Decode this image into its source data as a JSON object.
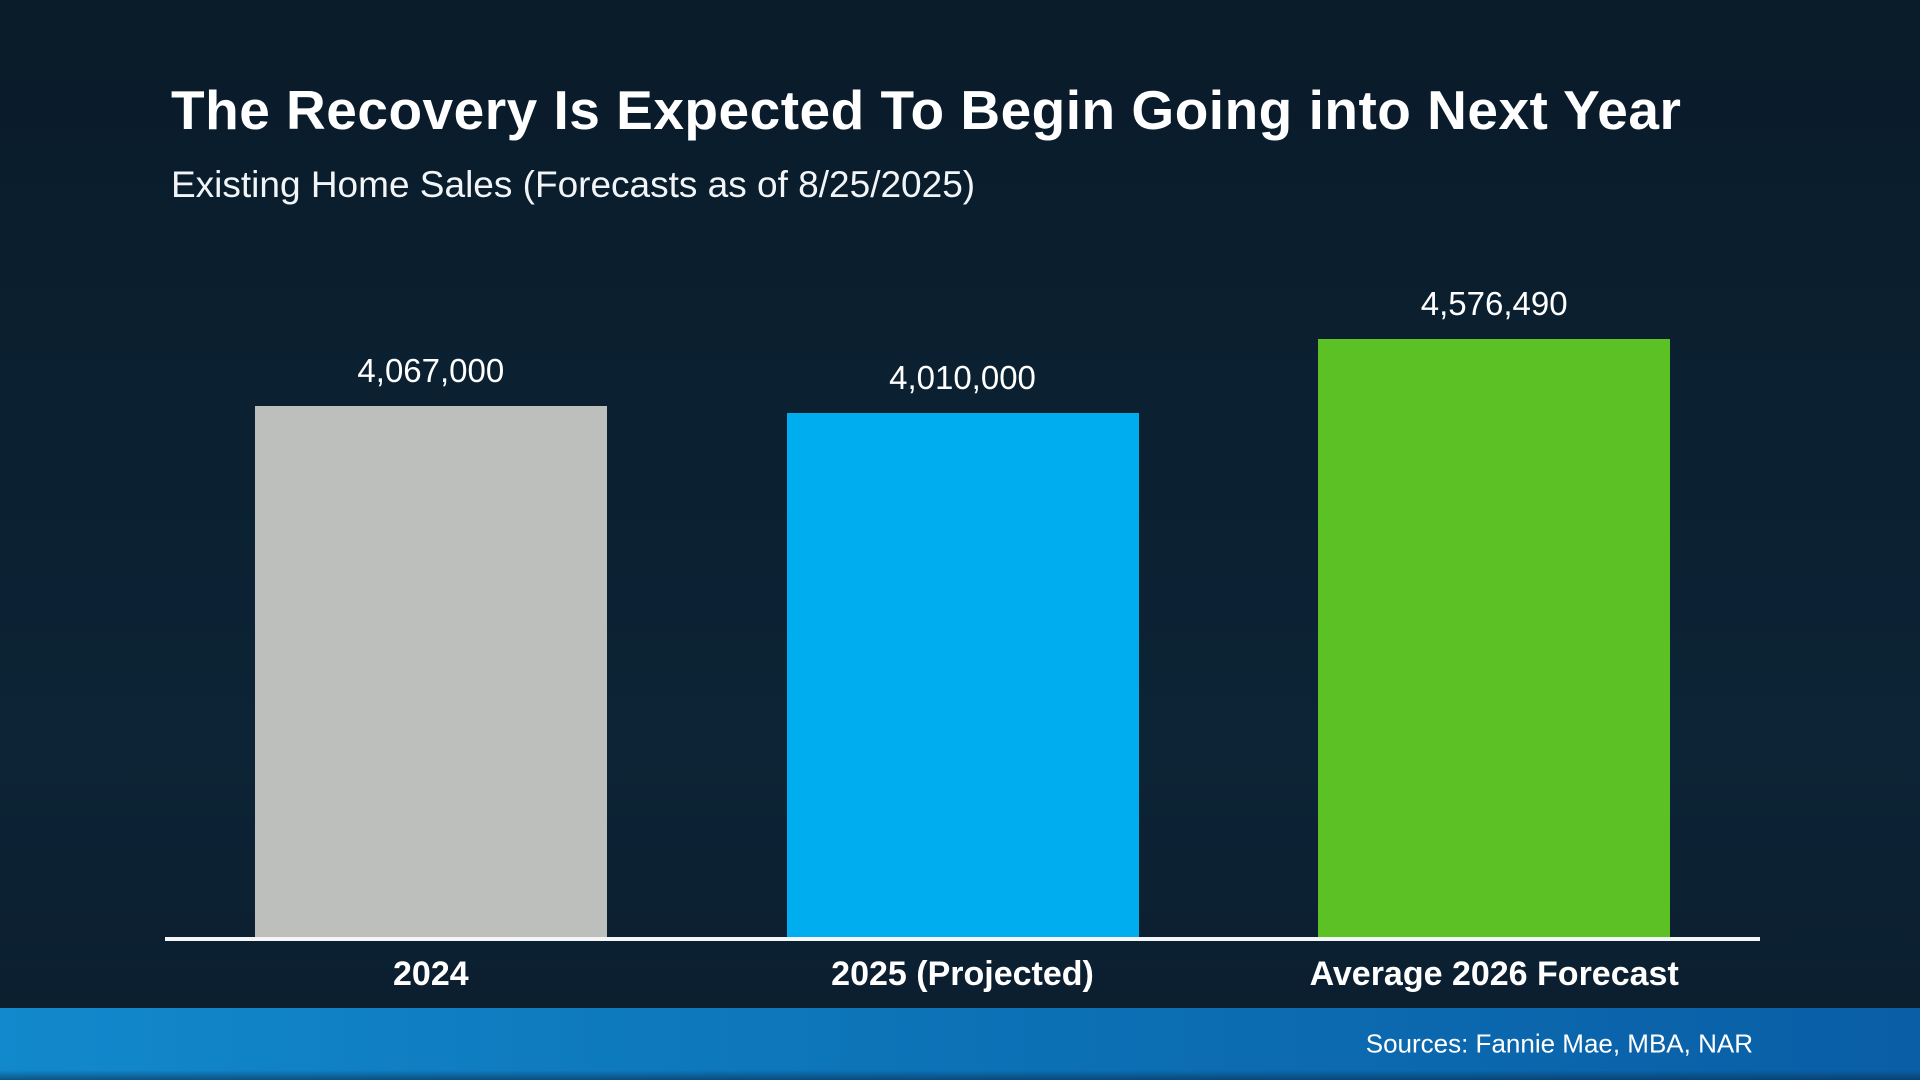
{
  "slide": {
    "title": "The Recovery Is Expected To Begin Going into Next Year",
    "subtitle": "Existing Home Sales (Forecasts as of 8/25/2025)",
    "source": "Sources: Fannie Mae, MBA, NAR"
  },
  "chart_data": {
    "type": "bar",
    "title": "The Recovery Is Expected To Begin Going into Next Year",
    "subtitle": "Existing Home Sales (Forecasts as of 8/25/2025)",
    "categories": [
      "2024",
      "2025 (Projected)",
      "Average 2026 Forecast"
    ],
    "values": [
      4067000,
      4010000,
      4576490
    ],
    "value_labels": [
      "4,067,000",
      "4,010,000",
      "4,576,490"
    ],
    "bar_colors": [
      "#bdbfbc",
      "#00aeef",
      "#5cc125"
    ],
    "xlabel": "",
    "ylabel": "",
    "ylim": [
      0,
      4576490
    ],
    "grid": false,
    "legend": false,
    "annotations": [
      "Sources: Fannie Mae, MBA, NAR"
    ],
    "colors": {
      "background_top": "#0a1b29",
      "background_bottom": "#0a1d2d",
      "baseline": "#f4f6f8",
      "footer_blue": "#0d74b8",
      "text": "#ffffff"
    }
  }
}
